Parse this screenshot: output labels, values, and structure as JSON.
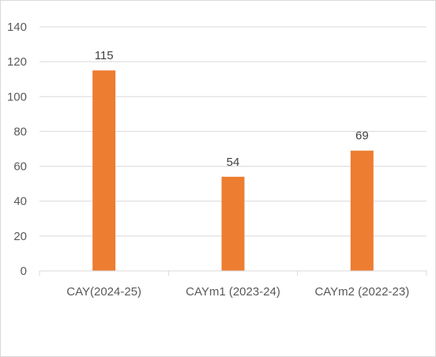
{
  "chart_data": {
    "type": "bar",
    "categories": [
      "CAY(2024-25)",
      "CAYm1 (2023-24)",
      "CAYm2 (2022-23)"
    ],
    "values": [
      115,
      54,
      69
    ],
    "data_labels": [
      "115",
      "54",
      "69"
    ],
    "y_ticks": [
      "0",
      "20",
      "40",
      "60",
      "80",
      "100",
      "120",
      "140"
    ],
    "ylim": [
      0,
      140
    ],
    "title": "",
    "xlabel": "",
    "ylabel": "",
    "grid": true,
    "legend": "none",
    "bar_color": "#ED7D31",
    "grid_color": "#D9D9D9"
  }
}
